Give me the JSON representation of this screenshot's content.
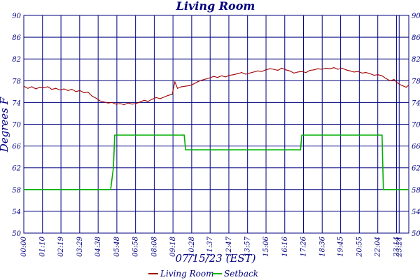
{
  "chart_data": {
    "type": "line",
    "title": "Living Room",
    "xlabel": "07/15/23 (EST)",
    "ylabel": "Degrees F",
    "ylim": [
      50,
      90
    ],
    "yticks": [
      50,
      54,
      58,
      62,
      66,
      70,
      74,
      78,
      82,
      86,
      90
    ],
    "xlim": [
      0,
      1440
    ],
    "xtick_labels": [
      "00:00",
      "01:10",
      "02:19",
      "03:29",
      "04:38",
      "05:48",
      "06:58",
      "08:08",
      "09:18",
      "10:28",
      "11:37",
      "12:47",
      "13:57",
      "15:06",
      "16:16",
      "17:26",
      "18:36",
      "19:45",
      "20:55",
      "22:04",
      "23:14",
      "23:24"
    ],
    "xtick_minutes": [
      0,
      70,
      139,
      209,
      278,
      348,
      418,
      488,
      558,
      628,
      697,
      767,
      837,
      906,
      976,
      1046,
      1116,
      1185,
      1255,
      1324,
      1394,
      1404
    ],
    "grid": true,
    "legend_position": "bottom",
    "series": [
      {
        "name": "Living Room",
        "color": "#a00000",
        "x": [
          0,
          15,
          30,
          45,
          60,
          75,
          90,
          105,
          120,
          135,
          150,
          165,
          180,
          195,
          210,
          225,
          240,
          255,
          270,
          285,
          300,
          315,
          330,
          345,
          360,
          375,
          390,
          405,
          420,
          435,
          450,
          465,
          480,
          495,
          510,
          525,
          540,
          555,
          565,
          575,
          590,
          605,
          620,
          635,
          650,
          665,
          680,
          695,
          710,
          725,
          740,
          755,
          770,
          785,
          800,
          815,
          830,
          845,
          860,
          875,
          890,
          905,
          920,
          935,
          950,
          965,
          980,
          995,
          1010,
          1025,
          1040,
          1055,
          1070,
          1085,
          1100,
          1115,
          1130,
          1145,
          1160,
          1175,
          1190,
          1205,
          1220,
          1235,
          1250,
          1265,
          1280,
          1295,
          1310,
          1325,
          1340,
          1355,
          1370,
          1385,
          1400,
          1415,
          1430,
          1440
        ],
        "y": [
          77.0,
          76.6,
          76.9,
          76.5,
          76.8,
          76.7,
          76.9,
          76.4,
          76.6,
          76.3,
          76.5,
          76.2,
          76.4,
          76.0,
          76.2,
          75.8,
          75.9,
          75.2,
          74.8,
          74.3,
          74.1,
          73.9,
          74.0,
          73.7,
          73.8,
          73.6,
          73.9,
          73.7,
          73.8,
          74.1,
          74.4,
          74.2,
          74.6,
          74.9,
          74.7,
          75.0,
          75.3,
          75.5,
          77.8,
          76.6,
          76.9,
          77.0,
          77.1,
          77.4,
          77.8,
          78.1,
          78.3,
          78.5,
          78.8,
          78.6,
          78.9,
          78.7,
          79.0,
          79.1,
          79.3,
          79.5,
          79.2,
          79.4,
          79.6,
          79.8,
          79.7,
          80.0,
          80.2,
          80.1,
          79.9,
          80.3,
          80.0,
          79.8,
          79.4,
          79.6,
          79.7,
          79.5,
          79.9,
          80.0,
          80.2,
          80.1,
          80.3,
          80.2,
          80.4,
          80.1,
          80.3,
          80.0,
          79.8,
          79.6,
          79.7,
          79.4,
          79.5,
          79.3,
          79.0,
          79.1,
          78.9,
          78.4,
          78.0,
          78.2,
          77.5,
          77.1,
          76.8,
          77.2
        ]
      },
      {
        "name": "Setback",
        "color": "#00b000",
        "x": [
          0,
          325,
          335,
          340,
          600,
          605,
          1035,
          1040,
          1340,
          1345,
          1440
        ],
        "y": [
          58,
          58,
          62,
          68,
          68,
          65.3,
          65.3,
          68,
          68,
          58,
          58
        ]
      }
    ]
  }
}
